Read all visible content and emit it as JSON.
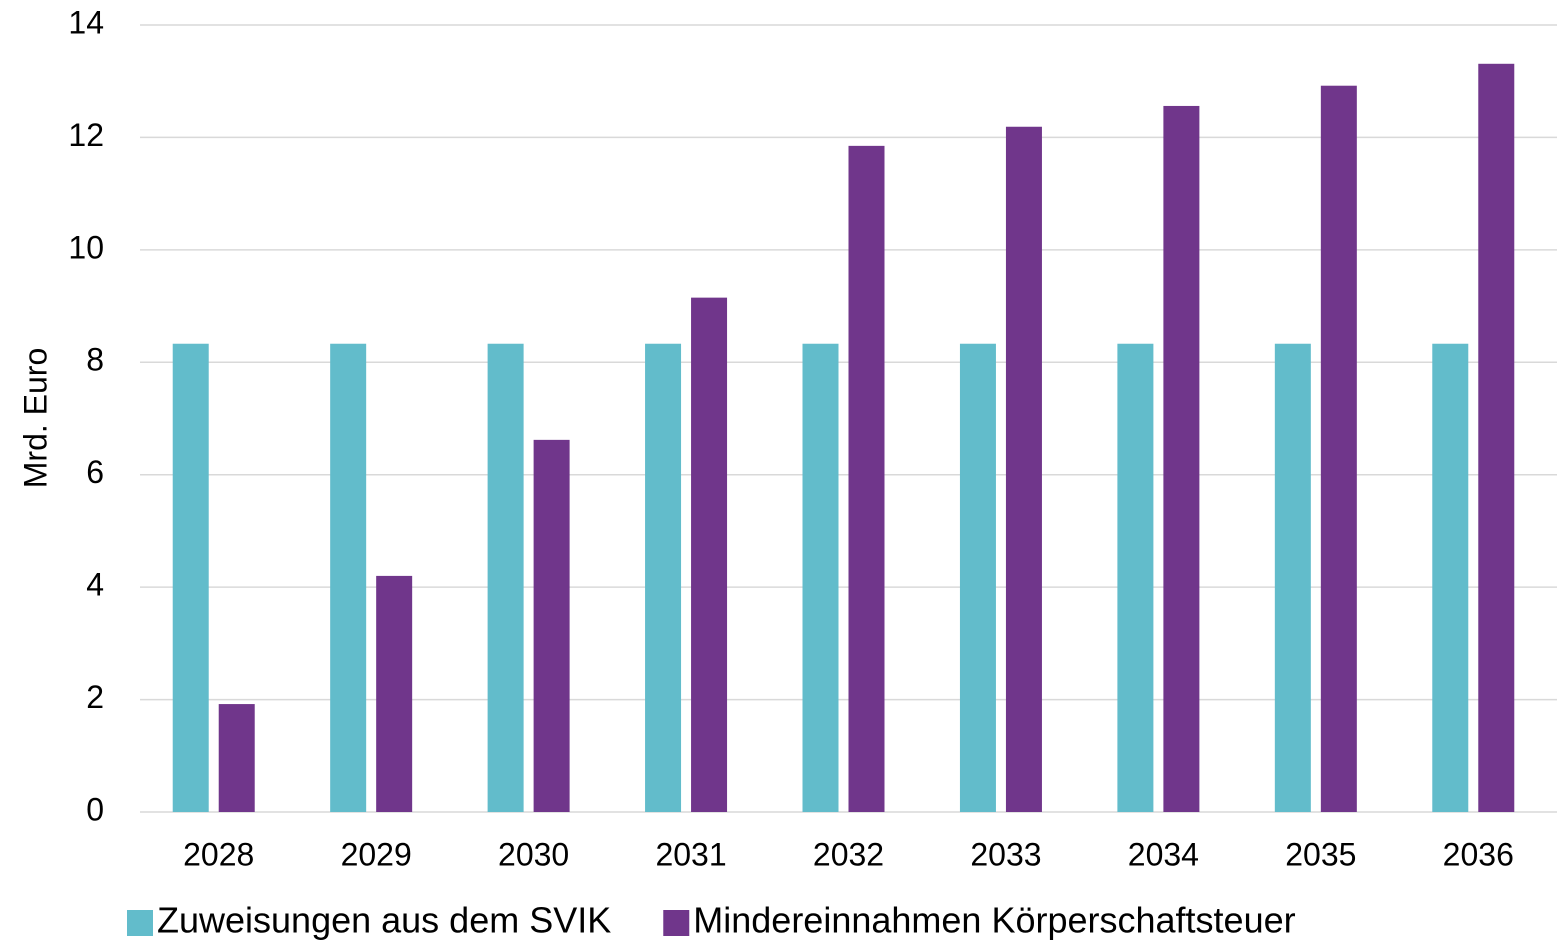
{
  "chart_data": {
    "type": "bar",
    "y_label": "Mrd. Euro",
    "categories": [
      "2028",
      "2029",
      "2030",
      "2031",
      "2032",
      "2033",
      "2034",
      "2035",
      "2036"
    ],
    "series": [
      {
        "name": "Zuweisungen aus dem SVIK",
        "color": "#62bccb",
        "values": [
          8.33,
          8.33,
          8.33,
          8.33,
          8.33,
          8.33,
          8.33,
          8.33,
          8.33
        ]
      },
      {
        "name": "Mindereinnahmen Körperschaftsteuer",
        "color": "#70368b",
        "values": [
          1.92,
          4.2,
          6.62,
          9.15,
          11.85,
          12.19,
          12.56,
          12.92,
          13.31
        ]
      }
    ],
    "ylim": [
      0,
      14
    ],
    "yticks": [
      0,
      2,
      4,
      6,
      8,
      10,
      12,
      14
    ],
    "grid": true,
    "legend": "bottom"
  }
}
